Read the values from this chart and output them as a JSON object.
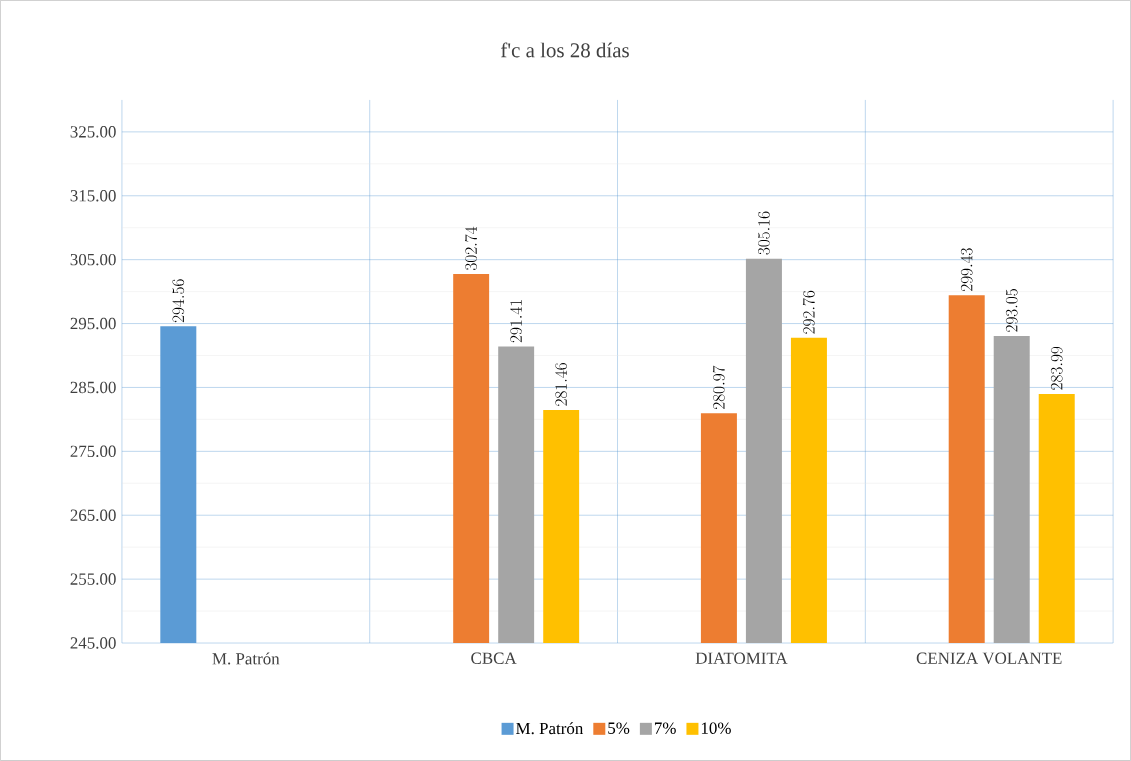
{
  "chart_data": {
    "type": "bar",
    "title": "f'c a los 28 días",
    "categories": [
      "M. Patrón",
      "CBCA",
      "DIATOMITA",
      "CENIZA VOLANTE"
    ],
    "series": [
      {
        "name": "M. Patrón",
        "color": "#5b9bd5",
        "values": [
          294.56,
          null,
          null,
          null
        ]
      },
      {
        "name": "5%",
        "color": "#ed7d31",
        "values": [
          null,
          302.74,
          280.97,
          299.43
        ]
      },
      {
        "name": "7%",
        "color": "#a5a5a5",
        "values": [
          null,
          291.41,
          305.16,
          293.05
        ]
      },
      {
        "name": "10%",
        "color": "#ffc000",
        "values": [
          null,
          281.46,
          292.76,
          283.99
        ]
      }
    ],
    "ylim": [
      245,
      330
    ],
    "yticks": [
      {
        "value": 245,
        "label": "245.00"
      },
      {
        "value": 255,
        "label": "255.00"
      },
      {
        "value": 265,
        "label": "265.00"
      },
      {
        "value": 275,
        "label": "275.00"
      },
      {
        "value": 285,
        "label": "285.00"
      },
      {
        "value": 295,
        "label": "295.00"
      },
      {
        "value": 305,
        "label": "305.00"
      },
      {
        "value": 315,
        "label": "315.00"
      },
      {
        "value": 325,
        "label": "325.00"
      }
    ],
    "grid": true,
    "legend": "bottom",
    "data_labels": true
  }
}
